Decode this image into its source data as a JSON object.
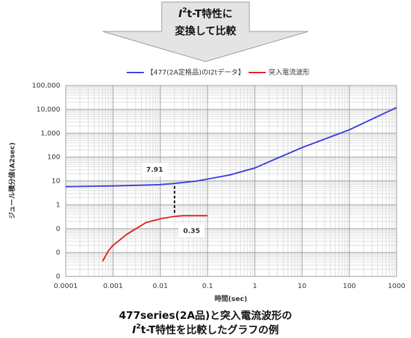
{
  "chart_data": {
    "type": "line",
    "banner": {
      "lines": [
        [
          "I",
          "2",
          "t-T特性に"
        ],
        [
          "変換して比較"
        ]
      ]
    },
    "caption": {
      "lines": [
        [
          "477series(2A品)と突入電流波形の"
        ],
        [
          "I",
          "2",
          "t-T特性を比較したグラフの例"
        ]
      ]
    },
    "x_label": "時間(sec)",
    "y_label": "ジュール積分値(A2sec)",
    "log_x": true,
    "log_y": true,
    "grid": true,
    "xlim": [
      0.0001,
      1000
    ],
    "xticks": [
      0.0001,
      0.001,
      0.01,
      0.1,
      1,
      10,
      100,
      1000
    ],
    "ylim": [
      0.001,
      100000
    ],
    "yticks": [
      {
        "value": 100000,
        "label": "100,000"
      },
      {
        "value": 10000,
        "label": "10,000"
      },
      {
        "value": 1000,
        "label": "1,000"
      },
      100,
      10,
      1,
      {
        "value": 0.1,
        "label": "0"
      },
      {
        "value": 0.01,
        "label": "0"
      },
      {
        "value": 0.001,
        "label": "0"
      }
    ],
    "series": [
      {
        "name": "【477(2A定格品)のI2tデータ】",
        "color": "#3c3ce0",
        "x": [
          0.0001,
          0.001,
          0.01,
          0.02,
          0.06,
          0.1,
          0.3,
          1,
          3,
          10,
          100,
          1000
        ],
        "values": [
          5.8,
          6.2,
          7,
          7.91,
          10,
          12,
          18,
          35,
          90,
          250,
          1400,
          12000
        ]
      },
      {
        "name": "突入電流波形",
        "color": "#e02020",
        "x": [
          0.0006,
          0.0008,
          0.001,
          0.002,
          0.005,
          0.01,
          0.02,
          0.03,
          0.1
        ],
        "values": [
          0.0043,
          0.012,
          0.02,
          0.06,
          0.18,
          0.26,
          0.33,
          0.35,
          0.35
        ]
      }
    ],
    "annotations": [
      {
        "x": 0.02,
        "y": 7.91,
        "color": "#3c3ce0"
      },
      {
        "x": 0.02,
        "y": 0.35,
        "color": "#e02020"
      }
    ]
  }
}
